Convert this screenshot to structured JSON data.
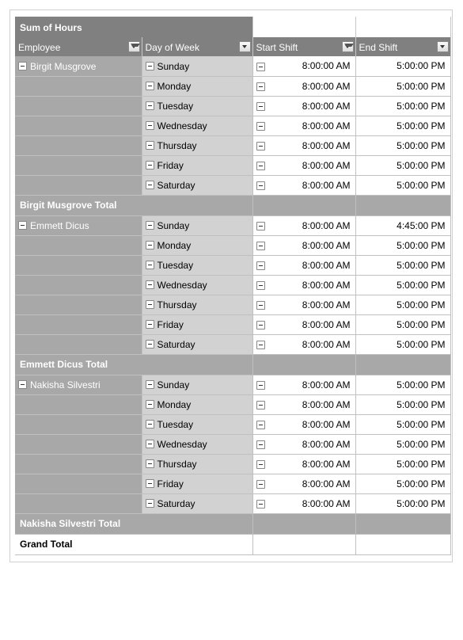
{
  "title": "Sum of Hours",
  "headers": {
    "employee": "Employee",
    "day": "Day of Week",
    "start": "Start Shift",
    "end": "End Shift"
  },
  "grand_total_label": "Grand Total",
  "groups": [
    {
      "name": "Birgit Musgrove",
      "total_label": "Birgit Musgrove Total",
      "rows": [
        {
          "day": "Sunday",
          "start": "8:00:00 AM",
          "end": "5:00:00 PM"
        },
        {
          "day": "Monday",
          "start": "8:00:00 AM",
          "end": "5:00:00 PM"
        },
        {
          "day": "Tuesday",
          "start": "8:00:00 AM",
          "end": "5:00:00 PM"
        },
        {
          "day": "Wednesday",
          "start": "8:00:00 AM",
          "end": "5:00:00 PM"
        },
        {
          "day": "Thursday",
          "start": "8:00:00 AM",
          "end": "5:00:00 PM"
        },
        {
          "day": "Friday",
          "start": "8:00:00 AM",
          "end": "5:00:00 PM"
        },
        {
          "day": "Saturday",
          "start": "8:00:00 AM",
          "end": "5:00:00 PM"
        }
      ]
    },
    {
      "name": "Emmett Dicus",
      "total_label": "Emmett Dicus Total",
      "rows": [
        {
          "day": "Sunday",
          "start": "8:00:00 AM",
          "end": "4:45:00 PM"
        },
        {
          "day": "Monday",
          "start": "8:00:00 AM",
          "end": "5:00:00 PM"
        },
        {
          "day": "Tuesday",
          "start": "8:00:00 AM",
          "end": "5:00:00 PM"
        },
        {
          "day": "Wednesday",
          "start": "8:00:00 AM",
          "end": "5:00:00 PM"
        },
        {
          "day": "Thursday",
          "start": "8:00:00 AM",
          "end": "5:00:00 PM"
        },
        {
          "day": "Friday",
          "start": "8:00:00 AM",
          "end": "5:00:00 PM"
        },
        {
          "day": "Saturday",
          "start": "8:00:00 AM",
          "end": "5:00:00 PM"
        }
      ]
    },
    {
      "name": "Nakisha Silvestri",
      "total_label": "Nakisha Silvestri Total",
      "rows": [
        {
          "day": "Sunday",
          "start": "8:00:00 AM",
          "end": "5:00:00 PM"
        },
        {
          "day": "Monday",
          "start": "8:00:00 AM",
          "end": "5:00:00 PM"
        },
        {
          "day": "Tuesday",
          "start": "8:00:00 AM",
          "end": "5:00:00 PM"
        },
        {
          "day": "Wednesday",
          "start": "8:00:00 AM",
          "end": "5:00:00 PM"
        },
        {
          "day": "Thursday",
          "start": "8:00:00 AM",
          "end": "5:00:00 PM"
        },
        {
          "day": "Friday",
          "start": "8:00:00 AM",
          "end": "5:00:00 PM"
        },
        {
          "day": "Saturday",
          "start": "8:00:00 AM",
          "end": "5:00:00 PM"
        }
      ]
    }
  ]
}
